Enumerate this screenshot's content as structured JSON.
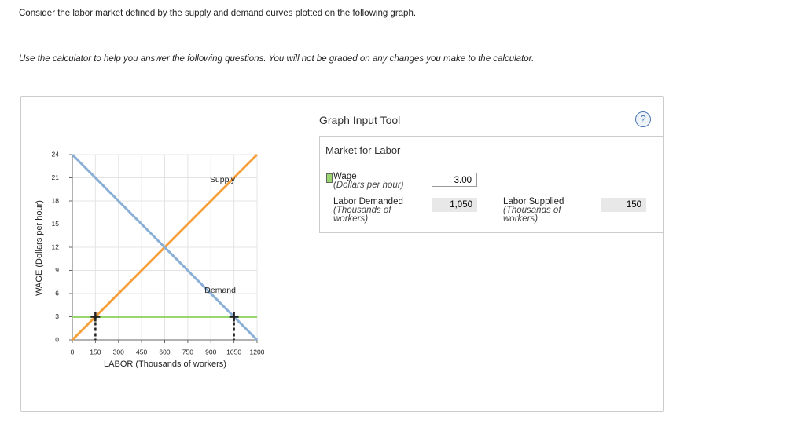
{
  "instructions": [
    "Consider the labor market defined by the supply and demand curves plotted on the following graph.",
    "Use the calculator to help you answer the following questions. You will not be graded on any changes you make to the calculator."
  ],
  "graph": {
    "type": "line",
    "x_label": "LABOR (Thousands of workers)",
    "y_label": "WAGE (Dollars per hour)",
    "xlim": [
      0,
      1200
    ],
    "ylim": [
      0,
      24
    ],
    "xticks": [
      0,
      150,
      300,
      450,
      600,
      750,
      900,
      1050,
      1200
    ],
    "yticks": [
      0,
      3,
      6,
      9,
      12,
      15,
      18,
      21,
      24
    ],
    "grid": true,
    "series": [
      {
        "name": "Supply",
        "color": "#f5a03c",
        "x": [
          0,
          1200
        ],
        "values": [
          0,
          24
        ]
      },
      {
        "name": "Demand",
        "color": "#8aafd6",
        "x": [
          0,
          1200
        ],
        "values": [
          24,
          0
        ]
      }
    ],
    "wage_line": {
      "color": "#99d66f",
      "value": 3
    },
    "points": {
      "color": "#222222",
      "x": [
        150,
        1050
      ],
      "values": [
        3,
        3
      ]
    }
  },
  "input_tool": {
    "title": "Graph Input Tool",
    "help": "?",
    "market": "Market for Labor",
    "wage": {
      "label": "Wage",
      "unit": "(Dollars per hour)",
      "value": "3.00"
    },
    "demanded": {
      "label": "Labor Demanded",
      "unit": "(Thousands of workers)",
      "value": "1,050"
    },
    "supplied": {
      "label": "Labor Supplied",
      "unit": "(Thousands of workers)",
      "value": "150"
    }
  }
}
